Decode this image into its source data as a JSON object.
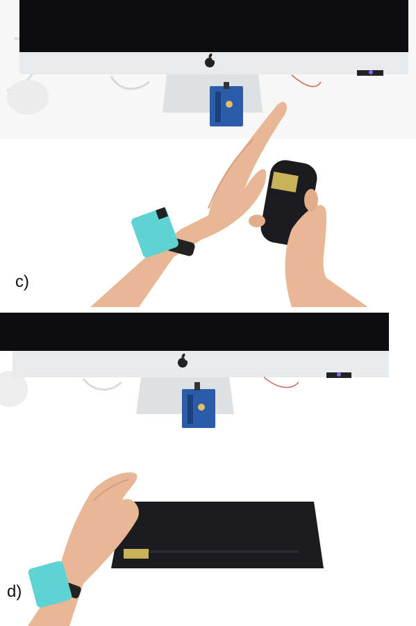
{
  "panels": [
    {
      "label": "c)",
      "scene": "hand-gesture-above-handheld-device"
    },
    {
      "label": "d)",
      "scene": "hand-resting-on-flat-keyboard-device"
    }
  ],
  "colors": {
    "wristband": "#5fd3d2",
    "device": "#1c1c20",
    "monitor_screen": "#0d0d0f",
    "monitor_bezel": "#e9eaec",
    "board": "#2a5caa",
    "skin": "#e8b896",
    "sensor_pad": "#c9b35a"
  }
}
